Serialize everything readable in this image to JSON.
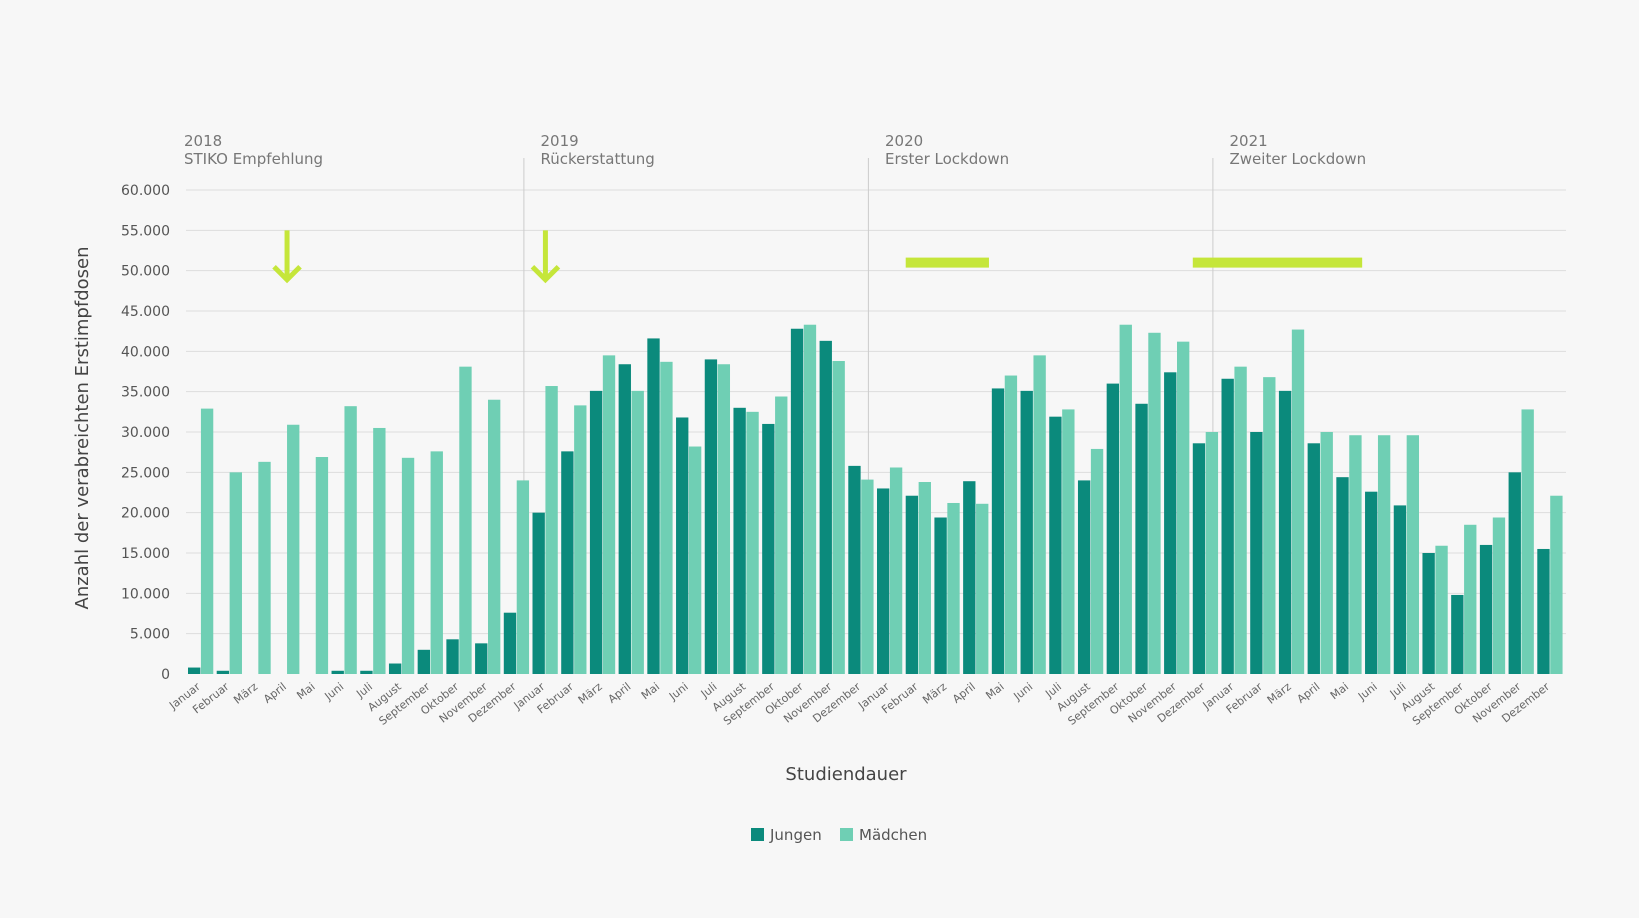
{
  "chart_data": {
    "type": "bar",
    "title": "",
    "xlabel": "Studiendauer",
    "ylabel": "Anzahl der verabreichten Erstimpfdosen",
    "ylim": [
      0,
      60000
    ],
    "yticks": [
      "0",
      "5.000",
      "10.000",
      "15.000",
      "20.000",
      "25.000",
      "30.000",
      "35.000",
      "40.000",
      "45.000",
      "50.000",
      "55.000",
      "60.000"
    ],
    "ytick_values": [
      0,
      5000,
      10000,
      15000,
      20000,
      25000,
      30000,
      35000,
      40000,
      45000,
      50000,
      55000,
      60000
    ],
    "grid": true,
    "legend_position": "bottom-center",
    "colors": {
      "Jungen": "#0b8a7c",
      "Mädchen": "#6fcfb4",
      "marker": "#c5e63a",
      "grid": "#dddddd",
      "separator": "#cccccc"
    },
    "months": [
      "Januar",
      "Februar",
      "März",
      "April",
      "Mai",
      "Juni",
      "Juli",
      "August",
      "September",
      "Oktober",
      "November",
      "Dezember"
    ],
    "years": [
      {
        "year": "2018",
        "event": "STIKO Empfehlung"
      },
      {
        "year": "2019",
        "event": "Rückerstattung"
      },
      {
        "year": "2020",
        "event": "Erster Lockdown"
      },
      {
        "year": "2021",
        "event": "Zweiter Lockdown"
      }
    ],
    "series": [
      {
        "name": "Jungen",
        "values": [
          800,
          400,
          0,
          0,
          0,
          400,
          400,
          1300,
          3000,
          4300,
          3800,
          7600,
          20000,
          27600,
          35100,
          38400,
          41600,
          31800,
          39000,
          33000,
          31000,
          42800,
          41300,
          25800,
          23000,
          22100,
          19400,
          23900,
          35400,
          35100,
          31900,
          24000,
          36000,
          33500,
          37400,
          28600,
          36600,
          30000,
          35100,
          28600,
          24400,
          22600,
          20900,
          15000,
          9800,
          16000,
          25000,
          15500
        ]
      },
      {
        "name": "Mädchen",
        "values": [
          32900,
          25000,
          26300,
          30900,
          26900,
          33200,
          30500,
          26800,
          27600,
          38100,
          34000,
          24000,
          35700,
          33300,
          39500,
          35100,
          38700,
          28200,
          38400,
          32500,
          34400,
          43300,
          38800,
          24100,
          25600,
          23800,
          21200,
          21100,
          37000,
          39500,
          32800,
          27900,
          43300,
          42300,
          41200,
          30000,
          38100,
          36800,
          42700,
          30000,
          29600,
          29600,
          29600,
          15900,
          18500,
          19400,
          32800,
          22100
        ]
      }
    ],
    "annotations": [
      {
        "type": "arrow",
        "year_index": 0,
        "month": "April",
        "y_from": 55000,
        "y_to": 48500
      },
      {
        "type": "arrow",
        "year_index": 1,
        "month": "Januar",
        "y_from": 55000,
        "y_to": 48500
      },
      {
        "type": "bar",
        "from": "2020-Februar",
        "to": "2020-April",
        "y": 51000
      },
      {
        "type": "bar",
        "from": "2020-Dezember",
        "to": "2021-Mai",
        "y": 51000
      }
    ]
  }
}
